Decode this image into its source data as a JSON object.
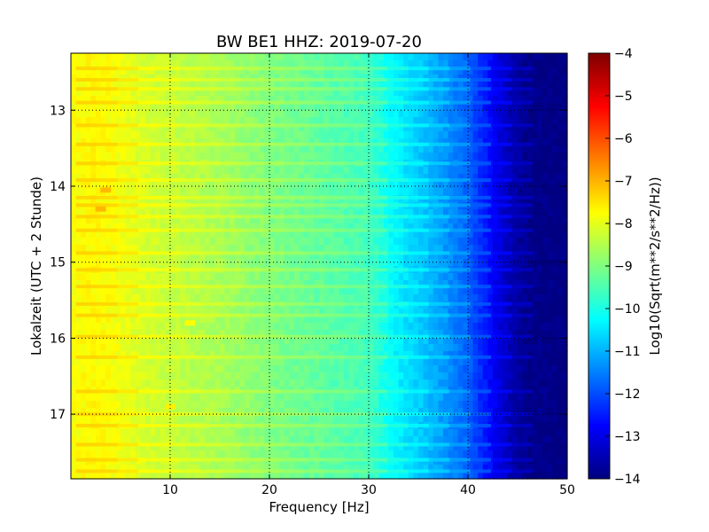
{
  "chart_data": {
    "type": "heatmap",
    "title": "BW BE1 HHZ: 2019-07-20",
    "xlabel": "Frequency [Hz]",
    "ylabel": "Lokalzeit (UTC + 2 Stunde)",
    "xlim": [
      0,
      50
    ],
    "ylim": [
      12.25,
      17.85
    ],
    "y_inverted": true,
    "x_ticks": [
      "10",
      "20",
      "30",
      "40",
      "50"
    ],
    "y_ticks": [
      "13",
      "14",
      "15",
      "16",
      "17"
    ],
    "grid": true,
    "colormap": "jet",
    "colorbar": {
      "label": "Log10(Sqrt(m**2/s**2/Hz))",
      "range": [
        -14,
        -4
      ],
      "ticks": [
        "-4",
        "-5",
        "-6",
        "-7",
        "-8",
        "-9",
        "-10",
        "-11",
        "-12",
        "-13",
        "-14"
      ]
    },
    "frequency_profile_hz": [
      0.5,
      2,
      4,
      8,
      15,
      20,
      25,
      30,
      33,
      36,
      40,
      42,
      44,
      46,
      50
    ],
    "frequency_profile_log10": [
      -7.8,
      -7.7,
      -7.8,
      -8.2,
      -8.6,
      -9.0,
      -9.3,
      -9.6,
      -10.4,
      -10.9,
      -11.8,
      -12.6,
      -13.4,
      -13.9,
      -14.0
    ],
    "horizontal_bands_hour": [
      12.45,
      12.6,
      12.72,
      12.9,
      13.2,
      13.45,
      13.7,
      13.92,
      14.15,
      14.25,
      14.4,
      14.58,
      14.88,
      15.1,
      15.32,
      15.55,
      15.7,
      15.98,
      16.25,
      16.7,
      17.0,
      17.15,
      17.4,
      17.6,
      17.75
    ],
    "transient_features_hour_hz": [
      [
        14.05,
        3.5
      ],
      [
        14.3,
        3.0
      ],
      [
        15.8,
        12.0
      ],
      [
        16.9,
        10.0
      ]
    ]
  }
}
